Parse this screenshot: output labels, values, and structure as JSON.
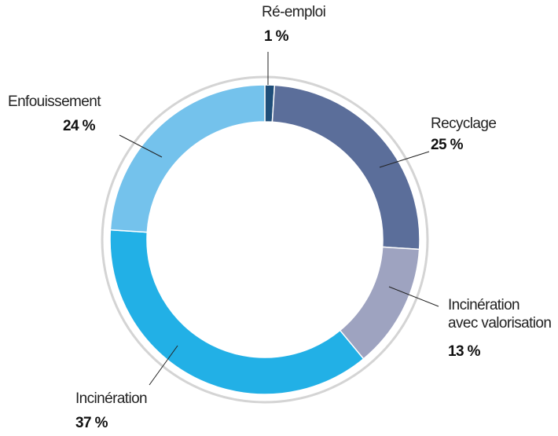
{
  "chart_data": {
    "type": "donut",
    "categories": [
      "Ré-emploi",
      "Recyclage",
      "Incinération\navec valorisation",
      "Incinération",
      "Enfouissement"
    ],
    "values": [
      1,
      25,
      13,
      37,
      24
    ],
    "value_labels": [
      "1 %",
      "25 %",
      "13 %",
      "37 %",
      "24 %"
    ],
    "colors": [
      "#1f4e79",
      "#5b6e9a",
      "#9ea3c0",
      "#22b0e6",
      "#74c2ec"
    ]
  }
}
